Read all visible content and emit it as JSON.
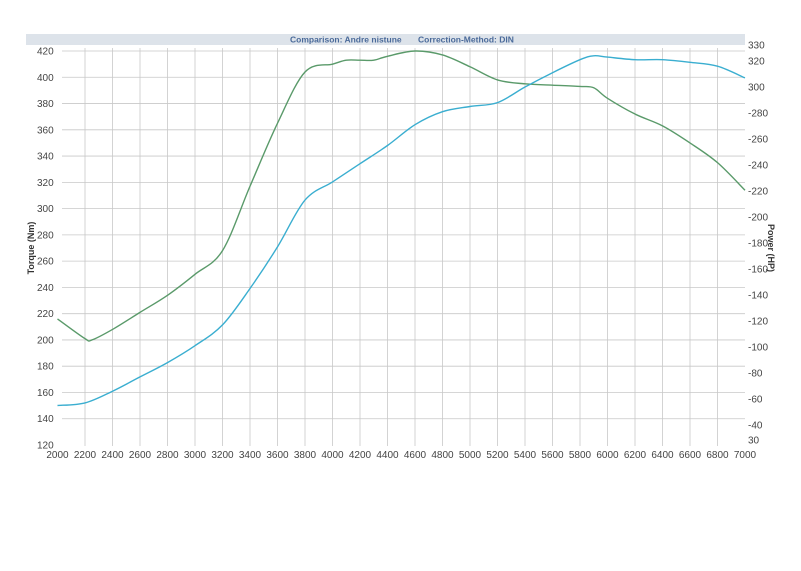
{
  "chart_data": {
    "type": "line",
    "header": {
      "comparison": "Comparison: Andre nistune",
      "correction": "Correction-Method: DIN"
    },
    "xlabel": "",
    "ylabel": "Torque (Nm)",
    "y2label": "Power (HP)",
    "xlim": [
      2000,
      7000
    ],
    "ylim": [
      120,
      420
    ],
    "y2lim": [
      30,
      330
    ],
    "x_ticks": [
      2000,
      2200,
      2400,
      2600,
      2800,
      3000,
      3200,
      3400,
      3600,
      3800,
      4000,
      4200,
      4400,
      4600,
      4800,
      5000,
      5200,
      5400,
      5600,
      5800,
      6000,
      6200,
      6400,
      6600,
      6800,
      7000
    ],
    "y_ticks": [
      120,
      140,
      160,
      180,
      200,
      220,
      240,
      260,
      280,
      300,
      320,
      340,
      360,
      380,
      400,
      420
    ],
    "y2_ticks": [
      30,
      40,
      60,
      80,
      100,
      120,
      140,
      160,
      180,
      200,
      220,
      240,
      260,
      280,
      300,
      320,
      330
    ],
    "grid": true,
    "series": [
      {
        "axis": "left",
        "color": "#5a9a6a",
        "x": [
          2000,
          2200,
          2250,
          2400,
          2600,
          2800,
          3000,
          3200,
          3400,
          3600,
          3800,
          4000,
          4100,
          4200,
          4300,
          4400,
          4600,
          4800,
          5000,
          5200,
          5400,
          5600,
          5800,
          5900,
          6000,
          6200,
          6400,
          6600,
          6800,
          7000
        ],
        "y": [
          216,
          201,
          200,
          208,
          221,
          234,
          250,
          268,
          317,
          365,
          404,
          410,
          413,
          413,
          413,
          416,
          420,
          417,
          408,
          398,
          395,
          394,
          393,
          392,
          384,
          372,
          363,
          350,
          335,
          314
        ]
      },
      {
        "axis": "right",
        "color": "#3aaed0",
        "x": [
          2000,
          2200,
          2400,
          2600,
          2800,
          3000,
          3200,
          3400,
          3600,
          3800,
          4000,
          4200,
          4400,
          4600,
          4800,
          5000,
          5200,
          5400,
          5600,
          5800,
          5900,
          6000,
          6200,
          6400,
          6600,
          6800,
          7000
        ],
        "y": [
          55,
          57,
          66,
          77,
          88,
          101,
          117,
          145,
          177,
          213,
          227,
          241,
          255,
          271,
          281,
          285,
          288,
          300,
          311,
          321,
          324,
          323,
          321,
          321,
          319,
          316,
          307
        ]
      }
    ]
  }
}
